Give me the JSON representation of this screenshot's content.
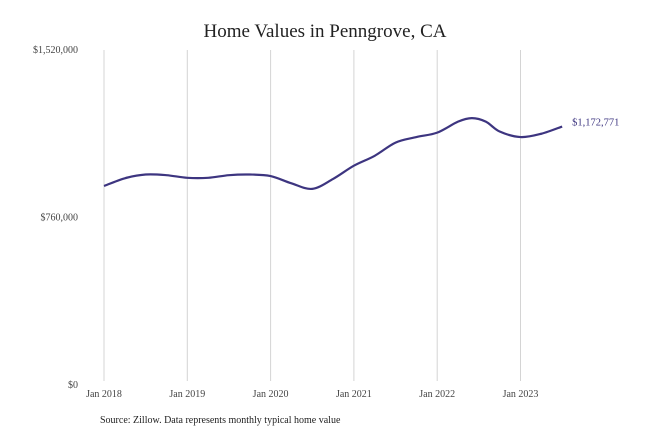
{
  "chart_data": {
    "type": "line",
    "title": "Home Values in Penngrove, CA",
    "source": "Source: Zillow. Data represents monthly typical home value",
    "xlabel": "",
    "ylabel": "",
    "ylim": [
      0,
      1520000
    ],
    "yticks": [
      {
        "value": 0,
        "label": "$0"
      },
      {
        "value": 760000,
        "label": "$760,000"
      },
      {
        "value": 1520000,
        "label": "$1,520,000"
      }
    ],
    "xticks": [
      {
        "value": "2018-01",
        "label": "Jan 2018"
      },
      {
        "value": "2019-01",
        "label": "Jan 2019"
      },
      {
        "value": "2020-01",
        "label": "Jan 2020"
      },
      {
        "value": "2021-01",
        "label": "Jan 2021"
      },
      {
        "value": "2022-01",
        "label": "Jan 2022"
      },
      {
        "value": "2023-01",
        "label": "Jan 2023"
      }
    ],
    "grid": "vertical",
    "line_color": "#3d3580",
    "end_label": "$1,172,771",
    "series": [
      {
        "x": [
          "2018-01",
          "2018-04",
          "2018-07",
          "2018-10",
          "2019-01",
          "2019-04",
          "2019-07",
          "2019-10",
          "2020-01",
          "2020-04",
          "2020-07",
          "2020-10",
          "2021-01",
          "2021-04",
          "2021-07",
          "2021-10",
          "2022-01",
          "2022-04",
          "2022-06",
          "2022-08",
          "2022-10",
          "2023-01",
          "2023-04",
          "2023-07"
        ],
        "values": [
          903000,
          938000,
          955000,
          952000,
          940000,
          940000,
          952000,
          955000,
          948000,
          915000,
          890000,
          935000,
          995000,
          1040000,
          1100000,
          1125000,
          1145000,
          1195000,
          1211000,
          1195000,
          1150000,
          1125000,
          1140000,
          1172771
        ]
      }
    ]
  }
}
